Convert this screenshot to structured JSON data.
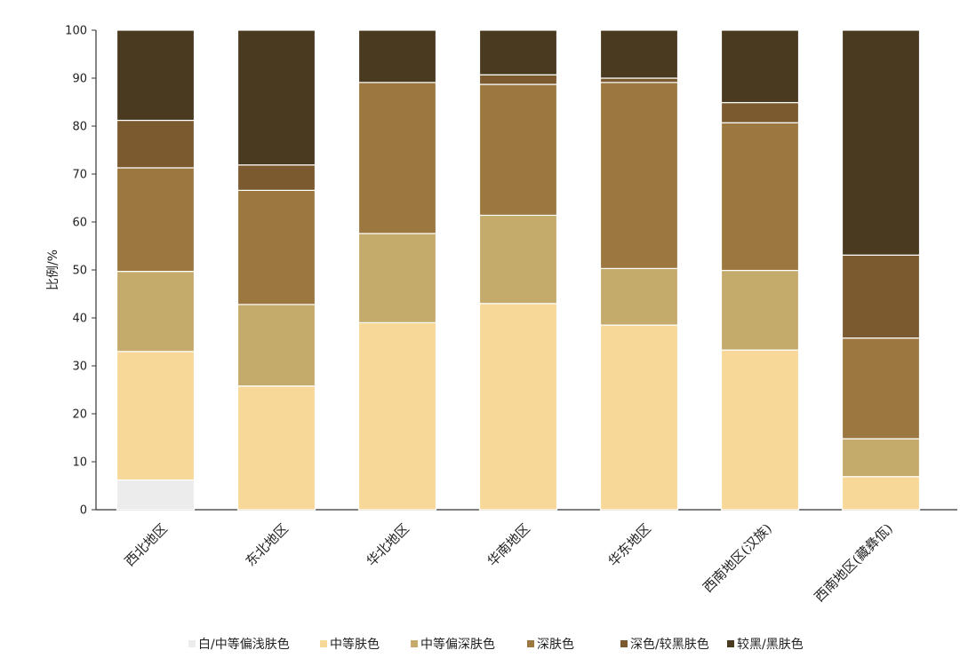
{
  "chart_data": {
    "type": "bar",
    "stacked": true,
    "title": "",
    "xlabel": "",
    "ylabel": "比例/%",
    "ylim": [
      0,
      100
    ],
    "yticks": [
      0,
      10,
      20,
      30,
      40,
      50,
      60,
      70,
      80,
      90,
      100
    ],
    "categories": [
      "西北地区",
      "东北地区",
      "华北地区",
      "华南地区",
      "华东地区",
      "西南地区(汉族)",
      "西南地区(藏彝佤)"
    ],
    "series": [
      {
        "name": "白/中等偏浅肤色",
        "color": "#ececec",
        "values": [
          6.2,
          0,
          0,
          0,
          0,
          0,
          0
        ]
      },
      {
        "name": "中等肤色",
        "color": "#f8d898",
        "values": [
          26.8,
          25.8,
          39.0,
          43.0,
          38.5,
          33.3,
          6.9
        ]
      },
      {
        "name": "中等偏深肤色",
        "color": "#c4ab6c",
        "values": [
          16.7,
          17.0,
          18.6,
          18.4,
          11.8,
          16.6,
          7.9
        ]
      },
      {
        "name": "深肤色",
        "color": "#9c7740",
        "values": [
          21.6,
          23.8,
          31.5,
          27.3,
          38.8,
          30.8,
          21.0
        ]
      },
      {
        "name": "深色/较黑肤色",
        "color": "#7a5a2e",
        "values": [
          9.9,
          5.3,
          0,
          2.0,
          0.9,
          4.2,
          17.3
        ]
      },
      {
        "name": "较黑/黑肤色",
        "color": "#4a3a20",
        "values": [
          18.8,
          28.1,
          10.9,
          9.3,
          10.0,
          15.1,
          46.9
        ]
      }
    ],
    "legend_position": "bottom",
    "grid": false
  }
}
